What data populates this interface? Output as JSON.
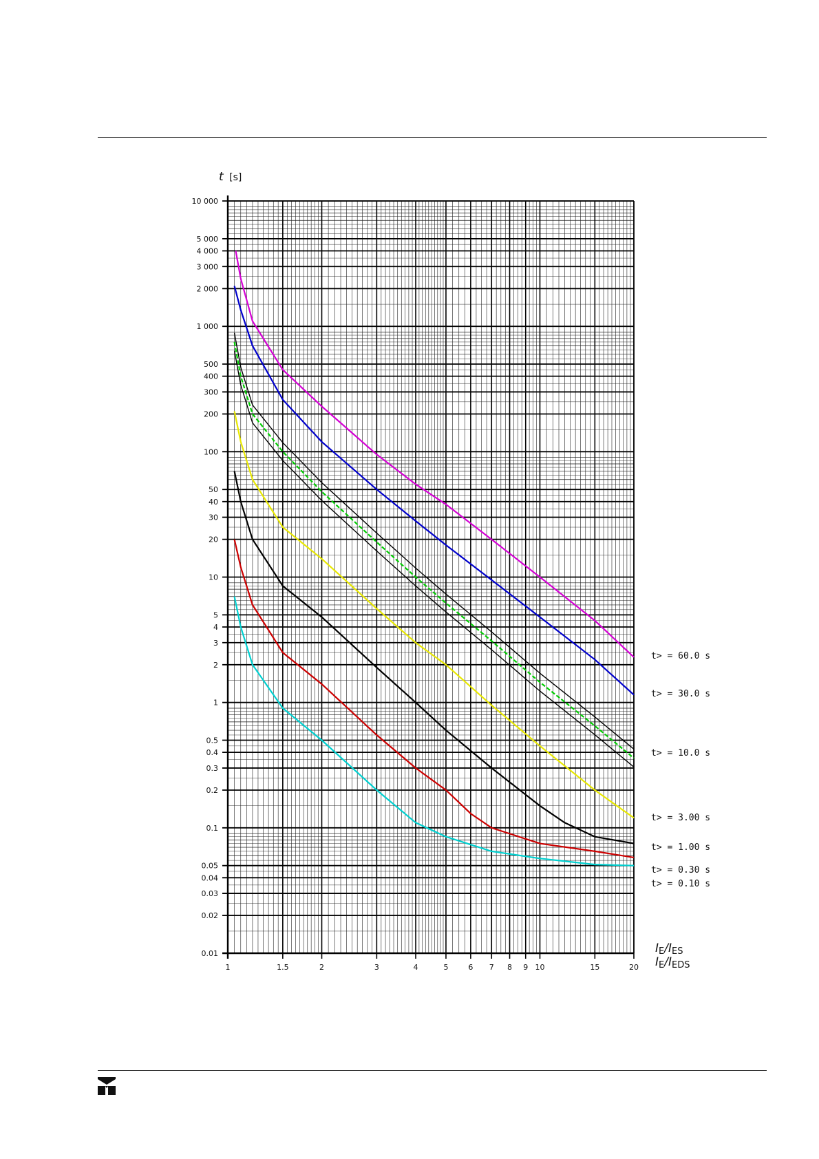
{
  "chart_data": {
    "type": "line",
    "x_scale": "log",
    "y_scale": "log",
    "xlim": [
      1,
      20
    ],
    "ylim": [
      0.01,
      10000
    ],
    "grid": true,
    "ylabel": {
      "var": "t",
      "unit": "[s]"
    },
    "xlabel_lines": [
      {
        "var1": "I",
        "sub1": "E",
        "sep": "/",
        "var2": "I",
        "sub2": "ES"
      },
      {
        "var1": "I",
        "sub1": "E",
        "sep": "/",
        "var2": "I",
        "sub2": "EDS"
      }
    ],
    "y_ticks": [
      {
        "value": 10000,
        "label": "10 000"
      },
      {
        "value": 5000,
        "label": "5 000"
      },
      {
        "value": 4000,
        "label": "4 000"
      },
      {
        "value": 3000,
        "label": "3 000"
      },
      {
        "value": 2000,
        "label": "2 000"
      },
      {
        "value": 1000,
        "label": "1 000"
      },
      {
        "value": 500,
        "label": "500"
      },
      {
        "value": 400,
        "label": "400"
      },
      {
        "value": 300,
        "label": "300"
      },
      {
        "value": 200,
        "label": "200"
      },
      {
        "value": 100,
        "label": "100"
      },
      {
        "value": 50,
        "label": "50"
      },
      {
        "value": 40,
        "label": "40"
      },
      {
        "value": 30,
        "label": "30"
      },
      {
        "value": 20,
        "label": "20"
      },
      {
        "value": 10,
        "label": "10"
      },
      {
        "value": 5,
        "label": "5"
      },
      {
        "value": 4,
        "label": "4"
      },
      {
        "value": 3,
        "label": "3"
      },
      {
        "value": 2,
        "label": "2"
      },
      {
        "value": 1,
        "label": "1"
      },
      {
        "value": 0.5,
        "label": "0.5"
      },
      {
        "value": 0.4,
        "label": "0.4"
      },
      {
        "value": 0.3,
        "label": "0.3"
      },
      {
        "value": 0.2,
        "label": "0.2"
      },
      {
        "value": 0.1,
        "label": "0.1"
      },
      {
        "value": 0.05,
        "label": "0.05"
      },
      {
        "value": 0.04,
        "label": "0.04"
      },
      {
        "value": 0.03,
        "label": "0.03"
      },
      {
        "value": 0.02,
        "label": "0.02"
      },
      {
        "value": 0.01,
        "label": "0.01"
      }
    ],
    "x_ticks": [
      {
        "value": 1,
        "label": "1"
      },
      {
        "value": 1.5,
        "label": "1.5"
      },
      {
        "value": 2,
        "label": "2"
      },
      {
        "value": 3,
        "label": "3"
      },
      {
        "value": 4,
        "label": "4"
      },
      {
        "value": 5,
        "label": "5"
      },
      {
        "value": 6,
        "label": "6"
      },
      {
        "value": 7,
        "label": "7"
      },
      {
        "value": 8,
        "label": "8"
      },
      {
        "value": 9,
        "label": "9"
      },
      {
        "value": 10,
        "label": "10"
      },
      {
        "value": 15,
        "label": "15"
      },
      {
        "value": 20,
        "label": "20"
      }
    ],
    "series": [
      {
        "name": "t> = 60.0 s",
        "color": "#d400d4",
        "x": [
          1.06,
          1.1,
          1.2,
          1.5,
          2,
          3,
          4,
          5,
          7,
          10,
          15,
          20
        ],
        "y": [
          4000,
          2400,
          1100,
          450,
          230,
          95,
          55,
          38,
          20,
          10,
          4.5,
          2.3
        ]
      },
      {
        "name": "t> = 30.0 s",
        "color": "#0000cc",
        "x": [
          1.05,
          1.1,
          1.2,
          1.5,
          2,
          3,
          4,
          5,
          7,
          10,
          15,
          20
        ],
        "y": [
          2100,
          1350,
          700,
          260,
          120,
          50,
          28,
          18,
          9.5,
          4.8,
          2.2,
          1.15
        ]
      },
      {
        "name": "t> = 10.0 s",
        "color": "#00cc00",
        "band": true,
        "x": [
          1.05,
          1.1,
          1.2,
          1.5,
          2,
          3,
          4,
          5,
          7,
          10,
          15,
          20
        ],
        "y": [
          750,
          400,
          200,
          100,
          48,
          19,
          10,
          6.2,
          3.1,
          1.45,
          0.65,
          0.36
        ]
      },
      {
        "name": "t> = 3.00 s",
        "color": "#e8e800",
        "x": [
          1.05,
          1.1,
          1.2,
          1.5,
          2,
          3,
          4,
          5,
          7,
          10,
          15,
          20
        ],
        "y": [
          210,
          120,
          60,
          25,
          14,
          5.6,
          3,
          2,
          0.95,
          0.45,
          0.2,
          0.12
        ]
      },
      {
        "name": "t> = 1.00 s",
        "color": "#000000",
        "x": [
          1.05,
          1.1,
          1.2,
          1.5,
          2,
          3,
          4,
          5,
          7,
          10,
          12,
          15,
          20
        ],
        "y": [
          70,
          40,
          20,
          8.5,
          4.8,
          1.9,
          1,
          0.6,
          0.3,
          0.15,
          0.11,
          0.085,
          0.075
        ]
      },
      {
        "name": "t> = 0.30 s",
        "color": "#cc0000",
        "x": [
          1.05,
          1.1,
          1.2,
          1.5,
          2,
          3,
          4,
          5,
          6,
          7,
          10,
          15,
          20
        ],
        "y": [
          20,
          12,
          6,
          2.5,
          1.4,
          0.55,
          0.3,
          0.2,
          0.13,
          0.1,
          0.075,
          0.065,
          0.058
        ]
      },
      {
        "name": "t> = 0.10 s",
        "color": "#00d0d0",
        "x": [
          1.05,
          1.1,
          1.2,
          1.5,
          2,
          3,
          4,
          5,
          7,
          10,
          15,
          20
        ],
        "y": [
          7,
          4,
          2,
          0.9,
          0.5,
          0.2,
          0.11,
          0.085,
          0.065,
          0.057,
          0.051,
          0.05
        ]
      }
    ]
  }
}
